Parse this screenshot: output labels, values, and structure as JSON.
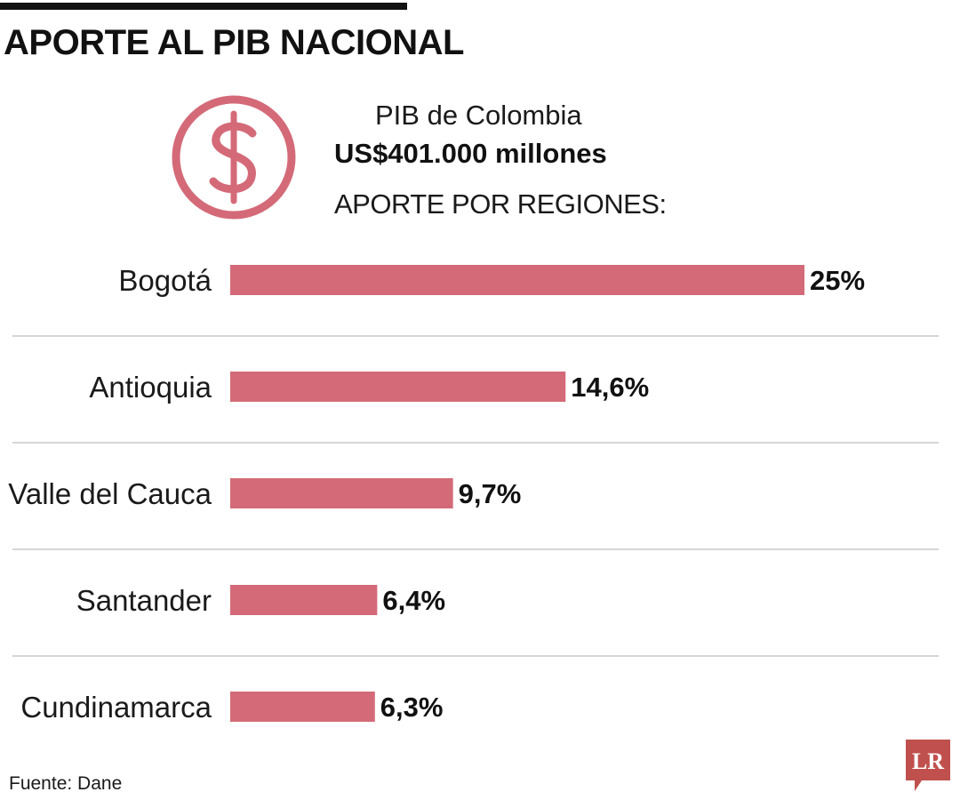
{
  "title": "APORTE AL PIB NACIONAL",
  "header": {
    "pib_label": "PIB de Colombia",
    "pib_value": "US$401.000 millones",
    "regions_label": "APORTE POR REGIONES:",
    "icon": "dollar-circle-icon"
  },
  "chart_data": {
    "type": "bar",
    "orientation": "horizontal",
    "categories": [
      "Bogotá",
      "Antioquia",
      "Valle del Cauca",
      "Santander",
      "Cundinamarca"
    ],
    "values": [
      25,
      14.6,
      9.7,
      6.4,
      6.3
    ],
    "value_labels": [
      "25%",
      "14,6%",
      "9,7%",
      "6,4%",
      "6,3%"
    ],
    "unit": "%",
    "xlim": [
      0,
      25
    ],
    "grid": false,
    "bar_color": "#d46a78",
    "separator_color": "#c8c8c8"
  },
  "source": "Fuente: Dane",
  "logo": {
    "text": "LR",
    "color": "#c0504d"
  },
  "colors": {
    "accent": "#d46a78",
    "title": "#111111"
  }
}
